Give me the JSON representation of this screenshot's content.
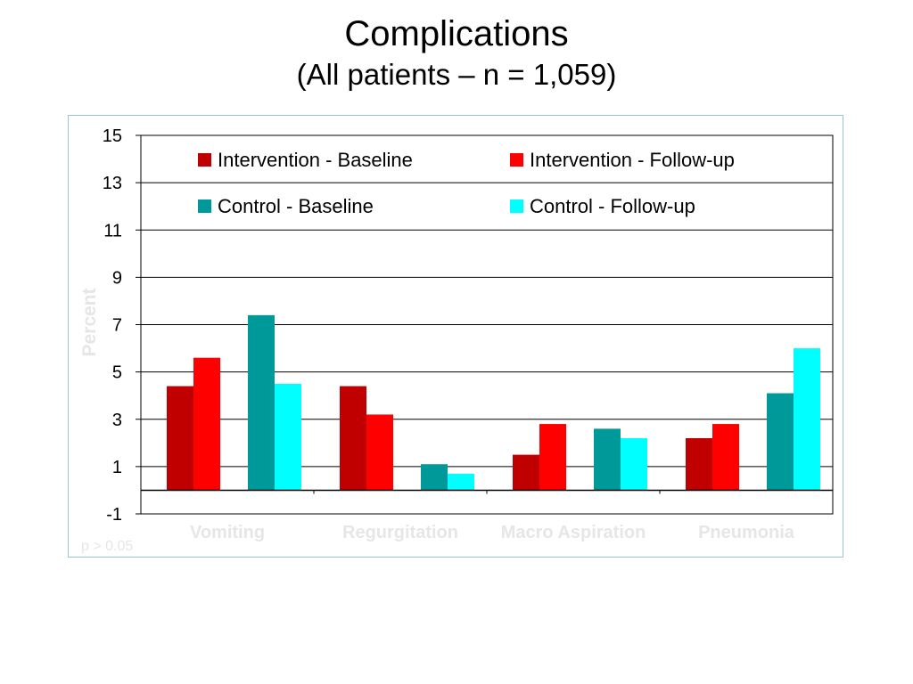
{
  "slide": {
    "title": "Complications",
    "subtitle": "(All patients – n = 1,059)"
  },
  "chart_data": {
    "type": "bar",
    "title": "",
    "xlabel": "",
    "ylabel": "Percent",
    "ylim": [
      -1,
      15
    ],
    "yticks": [
      15,
      13,
      11,
      9,
      7,
      5,
      3,
      1,
      -1
    ],
    "grid": true,
    "legend_position": "top",
    "categories": [
      "Vomiting",
      "Regurgitation",
      "Macro Aspiration",
      "Pneumonia"
    ],
    "series": [
      {
        "name": "Intervention - Baseline",
        "color": "#c00000",
        "values": [
          4.4,
          4.4,
          1.5,
          2.2
        ]
      },
      {
        "name": "Intervention - Follow-up",
        "color": "#ff0000",
        "values": [
          5.6,
          3.2,
          2.8,
          2.8
        ]
      },
      {
        "name": "Control - Baseline",
        "color": "#009999",
        "values": [
          7.4,
          1.1,
          2.6,
          4.1
        ]
      },
      {
        "name": "Control - Follow-up",
        "color": "#00ffff",
        "values": [
          4.5,
          0.7,
          2.2,
          6.0
        ]
      }
    ],
    "note": "p > 0.05"
  }
}
